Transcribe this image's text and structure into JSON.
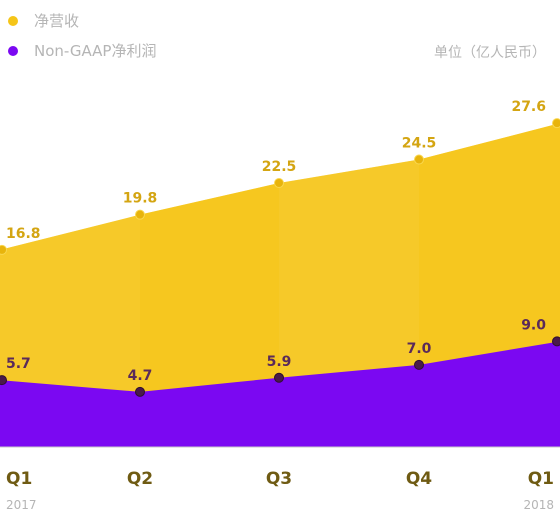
{
  "legend": [
    {
      "label": "净营收",
      "color": "#F5C518"
    },
    {
      "label": "Non-GAAP净利润",
      "color": "#7B08F2"
    }
  ],
  "unit_label": "单位（亿人民币）",
  "chart_data": {
    "type": "area",
    "categories": [
      "Q1",
      "Q2",
      "Q3",
      "Q4",
      "Q1"
    ],
    "sub_labels": [
      "2017",
      "",
      "",
      "",
      "2018"
    ],
    "series": [
      {
        "name": "净营收",
        "values": [
          16.8,
          19.8,
          22.5,
          24.5,
          27.6
        ],
        "color": "#F5C518"
      },
      {
        "name": "Non-GAAP净利润",
        "values": [
          5.7,
          4.7,
          5.9,
          7.0,
          9.0
        ],
        "color": "#7B08F2"
      }
    ],
    "ylim": [
      0,
      30
    ]
  },
  "colors": {
    "revenue_label": "#D4A512",
    "profit_label": "#5A2A5A",
    "area_yellow": "#F5C518",
    "area_purple": "#7B08F2",
    "baseline": "#C8C8C8"
  }
}
